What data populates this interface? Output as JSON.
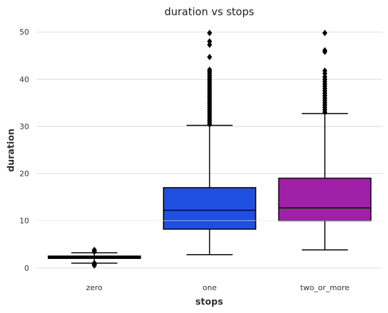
{
  "chart_data": {
    "type": "box",
    "title": "duration vs stops",
    "xlabel": "stops",
    "ylabel": "duration",
    "categories": [
      "zero",
      "one",
      "two_or_more"
    ],
    "ylim": [
      -1.5,
      51.5
    ],
    "yticks": [
      0,
      10,
      20,
      30,
      40,
      50
    ],
    "grid": true,
    "boxes": [
      {
        "category": "zero",
        "color": "#000000",
        "q1": 2.0,
        "median": 2.3,
        "q3": 2.5,
        "whisker_low": 1.0,
        "whisker_high": 3.2,
        "outliers": [
          0.5,
          0.7,
          0.8,
          0.9,
          1.0,
          3.4,
          3.6,
          3.8
        ]
      },
      {
        "category": "one",
        "color": "#1f4fe0",
        "q1": 8.2,
        "median": 12.2,
        "q3": 17.0,
        "whisker_low": 2.8,
        "whisker_high": 30.2,
        "outliers": [
          30.4,
          30.8,
          31.2,
          31.6,
          32.0,
          32.4,
          32.8,
          33.2,
          33.6,
          34.0,
          34.4,
          34.8,
          35.2,
          35.6,
          36.0,
          36.4,
          36.8,
          37.2,
          37.6,
          38.0,
          38.4,
          38.8,
          39.2,
          39.6,
          40.0,
          40.4,
          40.8,
          41.2,
          41.6,
          42.0,
          44.7,
          47.3,
          48.0,
          49.8
        ]
      },
      {
        "category": "two_or_more",
        "color": "#a020a8",
        "q1": 10.0,
        "median": 12.7,
        "q3": 19.0,
        "whisker_low": 3.8,
        "whisker_high": 32.7,
        "outliers": [
          33.0,
          33.5,
          34.0,
          34.5,
          35.0,
          35.5,
          36.0,
          36.5,
          37.0,
          37.5,
          38.0,
          38.5,
          39.0,
          39.5,
          40.0,
          40.5,
          41.2,
          41.8,
          45.8,
          46.1,
          49.8
        ]
      }
    ]
  }
}
